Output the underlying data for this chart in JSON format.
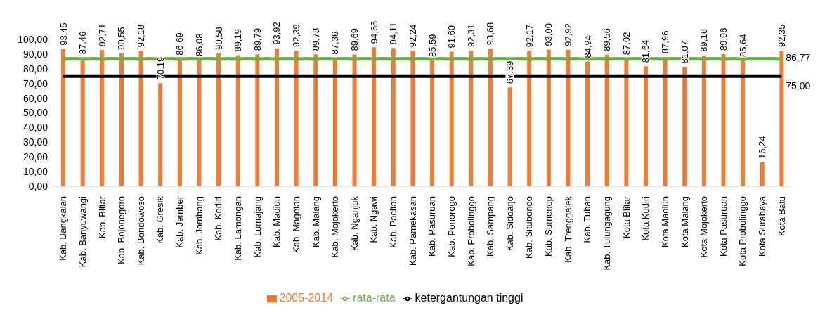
{
  "chart_data": {
    "type": "bar",
    "categories": [
      "Kab. Bangkalan",
      "Kab. Banyuwangi",
      "Kab. Blitar",
      "Kab. Bojonegoro",
      "Kab. Bondowoso",
      "Kab. Gresik",
      "Kab. Jember",
      "Kab. Jombang",
      "Kab. Kediri",
      "Kab. Lamongan",
      "Kab. Lumajang",
      "Kab. Madiun",
      "Kab. Magetan",
      "Kab. Malang",
      "Kab. Mojokerto",
      "Kab. Nganjuk",
      "Kab. Ngawi",
      "Kab. Pacitan",
      "Kab. Pamekasan",
      "Kab. Pasuruan",
      "Kab. Ponorogo",
      "Kab. Probolinggo",
      "Kab. Sampang",
      "Kab. Sidoarjo",
      "Kab. Situbondo",
      "Kab. Sumenep",
      "Kab. Trenggalek",
      "Kab. Tuban",
      "Kab. Tulungagung",
      "Kota Blitar",
      "Kota Kediri",
      "Kota Madiun",
      "Kota Malang",
      "Kota Mojokerto",
      "Kota Pasuruan",
      "Kota Probolinggo",
      "Kota Surabaya",
      "Kota Batu"
    ],
    "series": [
      {
        "name": "2005-2014",
        "color": "#ed7d31",
        "values": [
          93.45,
          87.46,
          92.71,
          90.55,
          92.18,
          70.19,
          86.69,
          86.08,
          90.58,
          89.19,
          89.79,
          93.92,
          92.39,
          89.78,
          87.36,
          89.69,
          94.65,
          94.11,
          92.24,
          85.59,
          91.6,
          92.31,
          93.68,
          67.39,
          92.17,
          93.0,
          92.92,
          84.94,
          89.56,
          87.02,
          81.64,
          87.96,
          81.07,
          89.16,
          89.96,
          85.64,
          16.24,
          92.35
        ],
        "value_labels": [
          "93,45",
          "87,46",
          "92,71",
          "90,55",
          "92,18",
          "70,19",
          "86,69",
          "86,08",
          "90,58",
          "89,19",
          "89,79",
          "93,92",
          "92,39",
          "89,78",
          "87,36",
          "89,69",
          "94,65",
          "94,11",
          "92,24",
          "85,59",
          "91,60",
          "92,31",
          "93,68",
          "67,39",
          "92,17",
          "93,00",
          "92,92",
          "84,94",
          "89,56",
          "87,02",
          "81,64",
          "87,96",
          "81,07",
          "89,16",
          "89,96",
          "85,64",
          "16,24",
          "92,35"
        ]
      },
      {
        "name": "rata-rata",
        "type": "line",
        "color": "#70ad47",
        "values": [
          86.77,
          86.77,
          86.77,
          86.77,
          86.77,
          86.77,
          86.77,
          86.77,
          86.77,
          86.77,
          86.77,
          86.77,
          86.77,
          86.77,
          86.77,
          86.77,
          86.77,
          86.77,
          86.77,
          86.77,
          86.77,
          86.77,
          86.77,
          86.77,
          86.77,
          86.77,
          86.77,
          86.77,
          86.77,
          86.77,
          86.77,
          86.77,
          86.77,
          86.77,
          86.77,
          86.77,
          86.77,
          86.77
        ],
        "value_labels": [
          null,
          null,
          null,
          null,
          null,
          null,
          null,
          null,
          null,
          null,
          null,
          null,
          null,
          null,
          null,
          null,
          null,
          null,
          null,
          null,
          null,
          null,
          null,
          null,
          null,
          null,
          null,
          null,
          null,
          null,
          null,
          null,
          null,
          null,
          null,
          null,
          null,
          "86,77"
        ]
      },
      {
        "name": "ketergantungan tinggi",
        "type": "line",
        "color": "#000000",
        "values": [
          75.0,
          75.0,
          75.0,
          75.0,
          75.0,
          75.0,
          75.0,
          75.0,
          75.0,
          75.0,
          75.0,
          75.0,
          75.0,
          75.0,
          75.0,
          75.0,
          75.0,
          75.0,
          75.0,
          75.0,
          75.0,
          75.0,
          75.0,
          75.0,
          75.0,
          75.0,
          75.0,
          75.0,
          75.0,
          75.0,
          75.0,
          75.0,
          75.0,
          75.0,
          75.0,
          75.0,
          75.0,
          75.0
        ],
        "value_labels": [
          null,
          null,
          null,
          null,
          null,
          null,
          null,
          null,
          null,
          null,
          null,
          null,
          null,
          null,
          null,
          null,
          null,
          null,
          null,
          null,
          null,
          null,
          null,
          null,
          null,
          null,
          null,
          null,
          null,
          null,
          null,
          null,
          null,
          null,
          null,
          null,
          null,
          "75,00"
        ]
      }
    ],
    "ylim": [
      0,
      100
    ],
    "yticks": [
      {
        "value": 0,
        "label": "0,00"
      },
      {
        "value": 10,
        "label": "10,00"
      },
      {
        "value": 20,
        "label": "20,00"
      },
      {
        "value": 30,
        "label": "30,00"
      },
      {
        "value": 40,
        "label": "40,00"
      },
      {
        "value": 50,
        "label": "50,00"
      },
      {
        "value": 60,
        "label": "60,00"
      },
      {
        "value": 70,
        "label": "70,00"
      },
      {
        "value": 80,
        "label": "80,00"
      },
      {
        "value": 90,
        "label": "90,00"
      },
      {
        "value": 100,
        "label": "100,00"
      }
    ],
    "legend": "bottom",
    "marker": "none",
    "line_style": "solid"
  }
}
